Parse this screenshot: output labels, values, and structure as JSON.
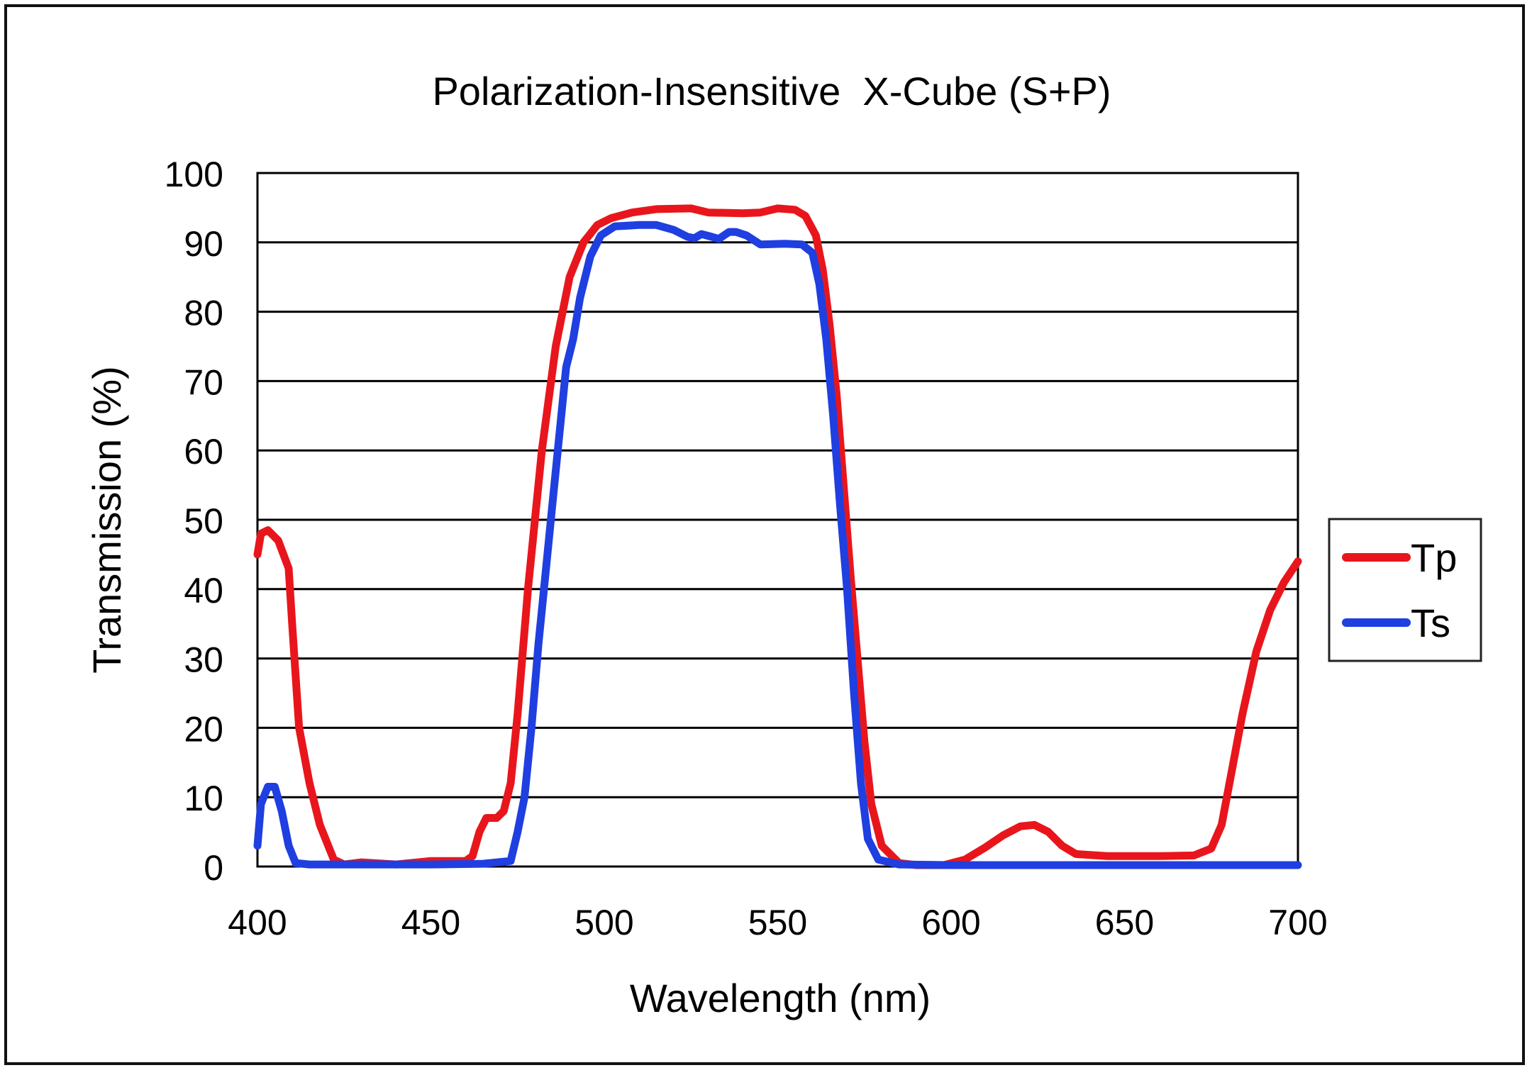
{
  "chart_data": {
    "type": "line",
    "title": "Polarization-Insensitive  X-Cube (S+P)",
    "xlabel": "Wavelength (nm)",
    "ylabel": "Transmission (%)",
    "xlim": [
      400,
      700
    ],
    "ylim": [
      0,
      100
    ],
    "x_ticks": [
      400,
      450,
      500,
      550,
      600,
      650,
      700
    ],
    "y_ticks": [
      0,
      10,
      20,
      30,
      40,
      50,
      60,
      70,
      80,
      90,
      100
    ],
    "grid": "horizontal",
    "legend_position": "right",
    "series": [
      {
        "name": "Tp",
        "color": "#e8161c",
        "points": [
          [
            400,
            45
          ],
          [
            401,
            48
          ],
          [
            403,
            48.5
          ],
          [
            406,
            47
          ],
          [
            409,
            43
          ],
          [
            410,
            35
          ],
          [
            412,
            20
          ],
          [
            415,
            12
          ],
          [
            418,
            6
          ],
          [
            422,
            1
          ],
          [
            425,
            0.3
          ],
          [
            430,
            0.6
          ],
          [
            440,
            0.3
          ],
          [
            450,
            0.8
          ],
          [
            460,
            0.8
          ],
          [
            462,
            1.5
          ],
          [
            464,
            5
          ],
          [
            466,
            7
          ],
          [
            469,
            7
          ],
          [
            471,
            8
          ],
          [
            473,
            12
          ],
          [
            475,
            22
          ],
          [
            478,
            40
          ],
          [
            482,
            60
          ],
          [
            486,
            75
          ],
          [
            490,
            85
          ],
          [
            494,
            90
          ],
          [
            498,
            92.5
          ],
          [
            502,
            93.5
          ],
          [
            508,
            94.3
          ],
          [
            515,
            94.8
          ],
          [
            525,
            94.9
          ],
          [
            530,
            94.3
          ],
          [
            540,
            94.2
          ],
          [
            545,
            94.3
          ],
          [
            550,
            94.9
          ],
          [
            555,
            94.7
          ],
          [
            558,
            93.8
          ],
          [
            561,
            91
          ],
          [
            563,
            86
          ],
          [
            565,
            78
          ],
          [
            567,
            68
          ],
          [
            569,
            55
          ],
          [
            571,
            42
          ],
          [
            573,
            30
          ],
          [
            575,
            18
          ],
          [
            577,
            9
          ],
          [
            580,
            3
          ],
          [
            585,
            0.5
          ],
          [
            590,
            0.2
          ],
          [
            598,
            0.2
          ],
          [
            604,
            1
          ],
          [
            610,
            2.8
          ],
          [
            615,
            4.5
          ],
          [
            620,
            5.8
          ],
          [
            624,
            6
          ],
          [
            628,
            5
          ],
          [
            632,
            3
          ],
          [
            636,
            1.8
          ],
          [
            645,
            1.5
          ],
          [
            660,
            1.5
          ],
          [
            670,
            1.6
          ],
          [
            675,
            2.6
          ],
          [
            678,
            6
          ],
          [
            681,
            14
          ],
          [
            684,
            22
          ],
          [
            688,
            31
          ],
          [
            692,
            37
          ],
          [
            696,
            41
          ],
          [
            700,
            44
          ]
        ]
      },
      {
        "name": "Ts",
        "color": "#1f3fe0",
        "points": [
          [
            400,
            3
          ],
          [
            401,
            9
          ],
          [
            403,
            11.5
          ],
          [
            405,
            11.5
          ],
          [
            407,
            8
          ],
          [
            409,
            3
          ],
          [
            411,
            0.5
          ],
          [
            415,
            0.3
          ],
          [
            450,
            0.3
          ],
          [
            465,
            0.4
          ],
          [
            473,
            0.8
          ],
          [
            475,
            5
          ],
          [
            477,
            10
          ],
          [
            479,
            20
          ],
          [
            481,
            32
          ],
          [
            483,
            42
          ],
          [
            485,
            52
          ],
          [
            487,
            62
          ],
          [
            489,
            72
          ],
          [
            491,
            76
          ],
          [
            493,
            82
          ],
          [
            496,
            88
          ],
          [
            499,
            91
          ],
          [
            503,
            92.3
          ],
          [
            510,
            92.5
          ],
          [
            515,
            92.5
          ],
          [
            520,
            91.8
          ],
          [
            524,
            90.8
          ],
          [
            526,
            90.6
          ],
          [
            528,
            91.2
          ],
          [
            531,
            90.8
          ],
          [
            533,
            90.5
          ],
          [
            536,
            91.5
          ],
          [
            538,
            91.5
          ],
          [
            541,
            91
          ],
          [
            545,
            89.7
          ],
          [
            552,
            89.8
          ],
          [
            557,
            89.7
          ],
          [
            560,
            88.5
          ],
          [
            562,
            84
          ],
          [
            564,
            76
          ],
          [
            566,
            65
          ],
          [
            568,
            52
          ],
          [
            570,
            40
          ],
          [
            572,
            25
          ],
          [
            574,
            12
          ],
          [
            576,
            4
          ],
          [
            579,
            1
          ],
          [
            585,
            0.3
          ],
          [
            600,
            0.2
          ],
          [
            640,
            0.2
          ],
          [
            700,
            0.2
          ]
        ]
      }
    ]
  }
}
